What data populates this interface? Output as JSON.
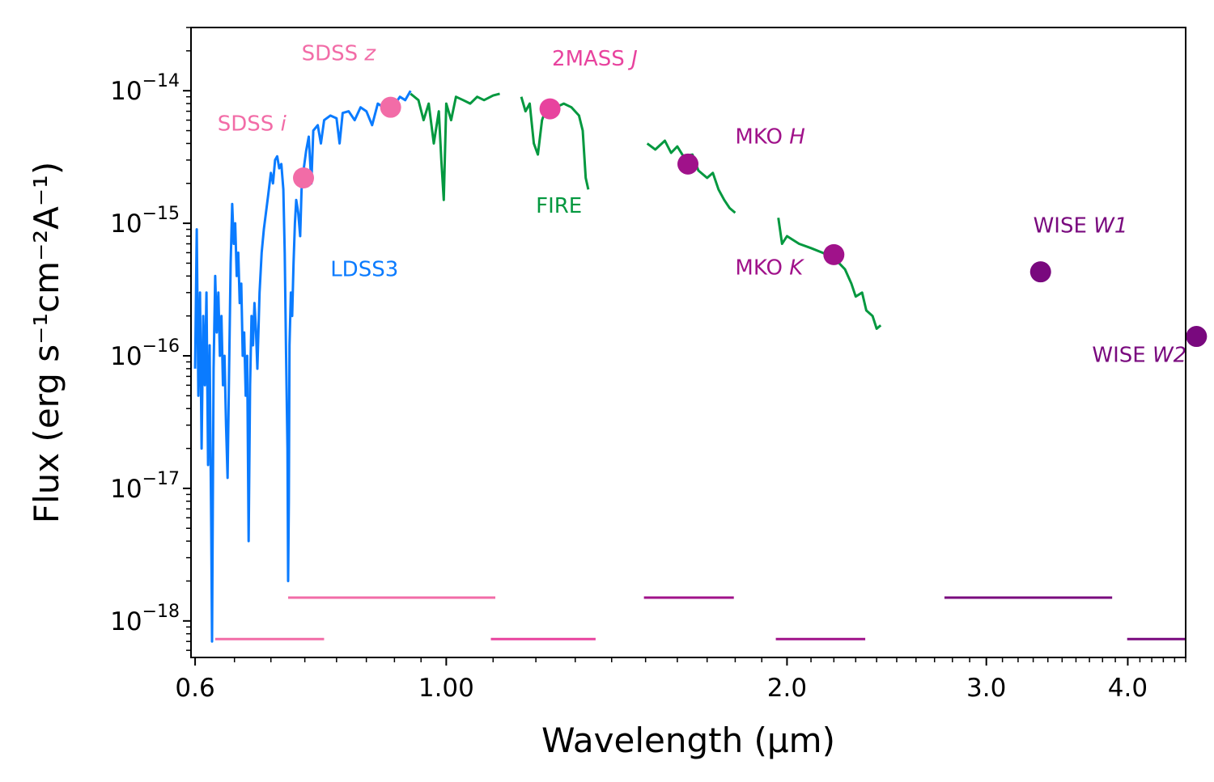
{
  "chart_data": {
    "type": "line",
    "xlabel": "Wavelength (μm)",
    "ylabel": "Flux (erg s⁻¹cm⁻²A⁻¹)",
    "xscale": "log",
    "yscale": "log",
    "xlim": [
      0.595,
      4.5
    ],
    "ylim": [
      5.3e-19,
      3e-14
    ],
    "x_ticks": [
      {
        "value": 0.6,
        "label": "0.6"
      },
      {
        "value": 1.0,
        "label": "1.00"
      },
      {
        "value": 2.0,
        "label": "2.0"
      },
      {
        "value": 3.0,
        "label": "3.0"
      },
      {
        "value": 4.0,
        "label": "4.0"
      }
    ],
    "y_ticks": [
      {
        "value": 1e-18,
        "mantissa": "10",
        "exponent": "−18"
      },
      {
        "value": 1e-17,
        "mantissa": "10",
        "exponent": "−17"
      },
      {
        "value": 1e-16,
        "mantissa": "10",
        "exponent": "−16"
      },
      {
        "value": 1e-15,
        "mantissa": "10",
        "exponent": "−15"
      },
      {
        "value": 1e-14,
        "mantissa": "10",
        "exponent": "−14"
      }
    ],
    "grid": false,
    "series": [
      {
        "name": "LDSS3",
        "color": "#0a7bff",
        "label_x": 0.79,
        "label_y": 4e-16,
        "points": [
          [
            0.6,
            8e-17
          ],
          [
            0.602,
            9e-16
          ],
          [
            0.604,
            5e-17
          ],
          [
            0.606,
            3e-16
          ],
          [
            0.608,
            2e-17
          ],
          [
            0.61,
            2e-16
          ],
          [
            0.612,
            6e-17
          ],
          [
            0.614,
            3e-16
          ],
          [
            0.616,
            1.5e-17
          ],
          [
            0.618,
            1.2e-16
          ],
          [
            0.62,
            5e-18
          ],
          [
            0.621,
            7e-19
          ],
          [
            0.623,
            8e-17
          ],
          [
            0.625,
            4e-16
          ],
          [
            0.627,
            1.5e-16
          ],
          [
            0.629,
            3e-16
          ],
          [
            0.631,
            1e-16
          ],
          [
            0.633,
            2e-16
          ],
          [
            0.635,
            6e-17
          ],
          [
            0.637,
            1e-16
          ],
          [
            0.639,
            3e-17
          ],
          [
            0.641,
            1.2e-17
          ],
          [
            0.643,
            8e-17
          ],
          [
            0.645,
            5e-16
          ],
          [
            0.647,
            1.4e-15
          ],
          [
            0.649,
            7e-16
          ],
          [
            0.651,
            1e-15
          ],
          [
            0.653,
            4e-16
          ],
          [
            0.655,
            6e-16
          ],
          [
            0.657,
            2.5e-16
          ],
          [
            0.659,
            3.5e-16
          ],
          [
            0.661,
            1e-16
          ],
          [
            0.663,
            1.5e-16
          ],
          [
            0.665,
            5e-17
          ],
          [
            0.667,
            1e-16
          ],
          [
            0.669,
            4e-18
          ],
          [
            0.671,
            6e-17
          ],
          [
            0.673,
            2e-16
          ],
          [
            0.675,
            1.2e-16
          ],
          [
            0.677,
            2.5e-16
          ],
          [
            0.679,
            1.6e-16
          ],
          [
            0.681,
            8e-17
          ],
          [
            0.684,
            3e-16
          ],
          [
            0.687,
            6e-16
          ],
          [
            0.69,
            9e-16
          ],
          [
            0.693,
            1.2e-15
          ],
          [
            0.696,
            1.6e-15
          ],
          [
            0.7,
            2.4e-15
          ],
          [
            0.703,
            2e-15
          ],
          [
            0.706,
            3e-15
          ],
          [
            0.709,
            3.2e-15
          ],
          [
            0.712,
            2.6e-15
          ],
          [
            0.715,
            2.8e-15
          ],
          [
            0.718,
            1.8e-15
          ],
          [
            0.72,
            6e-16
          ],
          [
            0.722,
            1e-16
          ],
          [
            0.724,
            2e-17
          ],
          [
            0.725,
            2e-18
          ],
          [
            0.726,
            8e-18
          ],
          [
            0.727,
            1.2e-16
          ],
          [
            0.729,
            3e-16
          ],
          [
            0.731,
            2e-16
          ],
          [
            0.733,
            5e-16
          ],
          [
            0.735,
            1e-15
          ],
          [
            0.737,
            1.5e-15
          ],
          [
            0.74,
            1.2e-15
          ],
          [
            0.743,
            8e-16
          ],
          [
            0.745,
            1.8e-15
          ],
          [
            0.748,
            2.5e-15
          ],
          [
            0.752,
            3.5e-15
          ],
          [
            0.756,
            4.5e-15
          ],
          [
            0.76,
            2e-15
          ],
          [
            0.763,
            5e-15
          ],
          [
            0.77,
            5.5e-15
          ],
          [
            0.775,
            4e-15
          ],
          [
            0.78,
            6e-15
          ],
          [
            0.79,
            6.5e-15
          ],
          [
            0.8,
            6.2e-15
          ],
          [
            0.805,
            4e-15
          ],
          [
            0.81,
            6.8e-15
          ],
          [
            0.82,
            7e-15
          ],
          [
            0.83,
            6e-15
          ],
          [
            0.84,
            7.5e-15
          ],
          [
            0.85,
            7e-15
          ],
          [
            0.86,
            5.5e-15
          ],
          [
            0.87,
            8e-15
          ],
          [
            0.88,
            7.5e-15
          ],
          [
            0.89,
            8.5e-15
          ],
          [
            0.9,
            7.8e-15
          ],
          [
            0.91,
            9e-15
          ],
          [
            0.92,
            8.5e-15
          ],
          [
            0.93,
            1e-14
          ]
        ]
      },
      {
        "name": "FIRE",
        "color": "#03983f",
        "label_x": 1.2,
        "label_y": 1.2e-15,
        "segments": [
          [
            [
              0.93,
              9.5e-15
            ],
            [
              0.945,
              8.5e-15
            ],
            [
              0.955,
              6e-15
            ],
            [
              0.965,
              8e-15
            ],
            [
              0.975,
              4e-15
            ],
            [
              0.985,
              7e-15
            ],
            [
              0.99,
              3e-15
            ],
            [
              0.995,
              1.5e-15
            ],
            [
              1.0,
              8e-15
            ],
            [
              1.01,
              6e-15
            ],
            [
              1.02,
              9e-15
            ],
            [
              1.035,
              8.5e-15
            ],
            [
              1.05,
              8e-15
            ],
            [
              1.065,
              9e-15
            ],
            [
              1.08,
              8.5e-15
            ],
            [
              1.1,
              9.2e-15
            ],
            [
              1.115,
              9.5e-15
            ]
          ],
          [
            [
              1.165,
              9e-15
            ],
            [
              1.175,
              7e-15
            ],
            [
              1.185,
              8e-15
            ],
            [
              1.195,
              4e-15
            ],
            [
              1.205,
              3.3e-15
            ],
            [
              1.215,
              6e-15
            ],
            [
              1.23,
              8e-15
            ],
            [
              1.25,
              7.5e-15
            ],
            [
              1.27,
              8e-15
            ],
            [
              1.29,
              7.5e-15
            ],
            [
              1.31,
              6.5e-15
            ],
            [
              1.32,
              5e-15
            ],
            [
              1.328,
              2.2e-15
            ],
            [
              1.335,
              1.8e-15
            ]
          ],
          [
            [
              1.505,
              4e-15
            ],
            [
              1.53,
              3.6e-15
            ],
            [
              1.56,
              4.2e-15
            ],
            [
              1.58,
              3.4e-15
            ],
            [
              1.6,
              3.8e-15
            ],
            [
              1.62,
              3.2e-15
            ],
            [
              1.65,
              3.3e-15
            ],
            [
              1.67,
              2.5e-15
            ],
            [
              1.7,
              2.2e-15
            ],
            [
              1.72,
              2.4e-15
            ],
            [
              1.74,
              1.8e-15
            ],
            [
              1.76,
              1.5e-15
            ],
            [
              1.78,
              1.3e-15
            ],
            [
              1.8,
              1.2e-15
            ]
          ],
          [
            [
              1.965,
              1.1e-15
            ],
            [
              1.98,
              7e-16
            ],
            [
              2.0,
              8e-16
            ],
            [
              2.05,
              7e-16
            ],
            [
              2.1,
              6.5e-16
            ],
            [
              2.15,
              6e-16
            ],
            [
              2.2,
              5.5e-16
            ],
            [
              2.25,
              4.5e-16
            ],
            [
              2.28,
              3.5e-16
            ],
            [
              2.3,
              2.8e-16
            ],
            [
              2.33,
              3e-16
            ],
            [
              2.35,
              2.2e-16
            ],
            [
              2.38,
              2e-16
            ],
            [
              2.4,
              1.6e-16
            ],
            [
              2.42,
              1.7e-16
            ]
          ]
        ]
      }
    ],
    "photometry": [
      {
        "band": "SDSS",
        "italic": "i",
        "x": 0.748,
        "y": 2.2e-15,
        "color": "#f26ca7",
        "label_x": 0.628,
        "label_y": 5e-15
      },
      {
        "band": "SDSS",
        "italic": "z",
        "x": 0.893,
        "y": 7.5e-15,
        "color": "#f26ca7",
        "label_x": 0.745,
        "label_y": 1.7e-14
      },
      {
        "band": "2MASS",
        "italic": "J",
        "x": 1.235,
        "y": 7.3e-15,
        "color": "#e8439e",
        "label_x": 1.24,
        "label_y": 1.55e-14
      },
      {
        "band": "MKO",
        "italic": "H",
        "x": 1.635,
        "y": 2.8e-15,
        "color": "#a0128a",
        "label_x": 1.8,
        "label_y": 4e-15
      },
      {
        "band": "MKO",
        "italic": "K",
        "x": 2.2,
        "y": 5.8e-16,
        "color": "#a0128a",
        "label_x": 1.8,
        "label_y": 4.1e-16
      },
      {
        "band": "WISE",
        "italic": "W1",
        "x": 3.35,
        "y": 4.3e-16,
        "color": "#79097e",
        "label_x": 3.3,
        "label_y": 8.5e-16
      },
      {
        "band": "WISE",
        "italic": "W2",
        "x": 4.6,
        "y": 1.4e-16,
        "color": "#79097e",
        "label_x": 3.72,
        "label_y": 9e-17
      }
    ],
    "filter_bandpasses": [
      {
        "x_start": 0.625,
        "x_end": 0.78,
        "level": 7.3e-19,
        "color": "#f26ca7"
      },
      {
        "x_start": 0.725,
        "x_end": 1.105,
        "level": 1.5e-18,
        "color": "#f26ca7"
      },
      {
        "x_start": 1.095,
        "x_end": 1.355,
        "level": 7.3e-19,
        "color": "#e8439e"
      },
      {
        "x_start": 1.495,
        "x_end": 1.795,
        "level": 1.5e-18,
        "color": "#a0128a"
      },
      {
        "x_start": 1.955,
        "x_end": 2.345,
        "level": 7.3e-19,
        "color": "#a0128a"
      },
      {
        "x_start": 2.755,
        "x_end": 3.875,
        "level": 1.5e-18,
        "color": "#79097e"
      },
      {
        "x_start": 3.995,
        "x_end": 5.2,
        "level": 7.3e-19,
        "color": "#79097e"
      }
    ]
  }
}
